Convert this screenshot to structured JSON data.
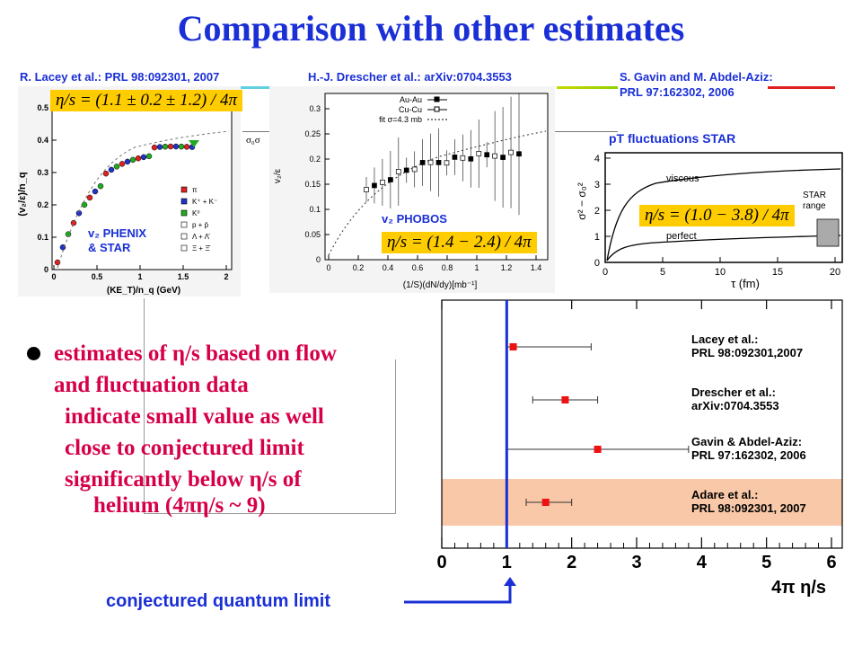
{
  "title": "Comparison with other estimates",
  "refs": {
    "lacey": "R. Lacey et al.: PRL 98:092301, 2007",
    "drescher": "H.-J. Drescher et al.: arXiv:0704.3553",
    "gavin_line1": "S. Gavin and M. Abdel-Aziz:",
    "gavin_line2": "PRL 97:162302, 2006"
  },
  "panel1": {
    "formula": "η/s = (1.1 ± 0.2 ± 1.2) / 4π",
    "label_line1": "v₂ PHENIX",
    "label_line2": "& STAR",
    "xlabel": "(KE_T)/n_q (GeV)",
    "ylabel": "(v₂/ε)/n_q",
    "yticks": [
      "0",
      "0.1",
      "0.2",
      "0.3",
      "0.4",
      "0.5"
    ],
    "xticks": [
      "0",
      "0.5",
      "1",
      "1.5",
      "2"
    ],
    "legend": [
      "π",
      "K⁺ + K⁻",
      "K⁰",
      "p + p̄",
      "Λ + Λ̄",
      "Ξ + Ξ̄"
    ],
    "side_text": "σ₀σ"
  },
  "panel2": {
    "formula": "η/s = (1.4 − 2.4) / 4π",
    "label": "v₂ PHOBOS",
    "xlabel": "(1/S)(dN/dy)[mb⁻¹]",
    "ylabel": "v₂/ε",
    "yticks": [
      "0",
      "0.05",
      "0.1",
      "0.15",
      "0.2",
      "0.25",
      "0.3"
    ],
    "xticks": [
      "0",
      "0.2",
      "0.4",
      "0.6",
      "0.8",
      "1",
      "1.2",
      "1.4"
    ],
    "legend": [
      "Au-Au",
      "Cu-Cu",
      "fit σ=4.3 mb"
    ]
  },
  "panel3": {
    "heading": "pT fluctuations STAR",
    "formula": "η/s = (1.0 − 3.8) / 4π",
    "ylabel": "σ² − σ₀²",
    "xlabel": "τ (fm)",
    "yticks": [
      "0",
      "1",
      "2",
      "3",
      "4"
    ],
    "xticks": [
      "0",
      "5",
      "10",
      "15",
      "20"
    ],
    "curve_viscous": "viscous",
    "curve_perfect": "perfect",
    "star_range_line1": "STAR",
    "star_range_line2": "range"
  },
  "bullets": {
    "line1": "estimates of η/s based on flow",
    "line2": "and fluctuation data",
    "line3": "indicate small value as well",
    "line4": "close to conjectured limit",
    "line5": "significantly below η/s of",
    "line6": "helium (4πη/s ~ 9)"
  },
  "limit_label": "conjectured quantum limit",
  "colors": {
    "title_blue": "#1a2fd6",
    "bullet_red": "#d6004a",
    "formula_yellow": "#ffcc00",
    "adare_band": "#f8c8a8",
    "marker_red": "#ee1111"
  },
  "chart_data": {
    "type": "scatter",
    "xlabel": "4π η/s",
    "xlim": [
      0,
      6
    ],
    "xticks": [
      0,
      1,
      2,
      3,
      4,
      5,
      6
    ],
    "limit_x": 1,
    "series": [
      {
        "name": "Lacey et al.:",
        "ref": "PRL 98:092301,2007",
        "x": 1.1,
        "xerr_low": 0.1,
        "xerr_high": 1.2
      },
      {
        "name": "Drescher et al.:",
        "ref": "arXiv:0704.3553",
        "x": 1.9,
        "xerr_low": 0.5,
        "xerr_high": 0.5
      },
      {
        "name": "Gavin & Abdel-Aziz:",
        "ref": "PRL 97:162302, 2006",
        "x": 2.4,
        "xerr_low": 1.4,
        "xerr_high": 1.4
      },
      {
        "name": "Adare et al.:",
        "ref": "PRL 98:092301, 2007",
        "x": 1.6,
        "xerr_low": 0.3,
        "xerr_high": 0.4
      }
    ]
  }
}
